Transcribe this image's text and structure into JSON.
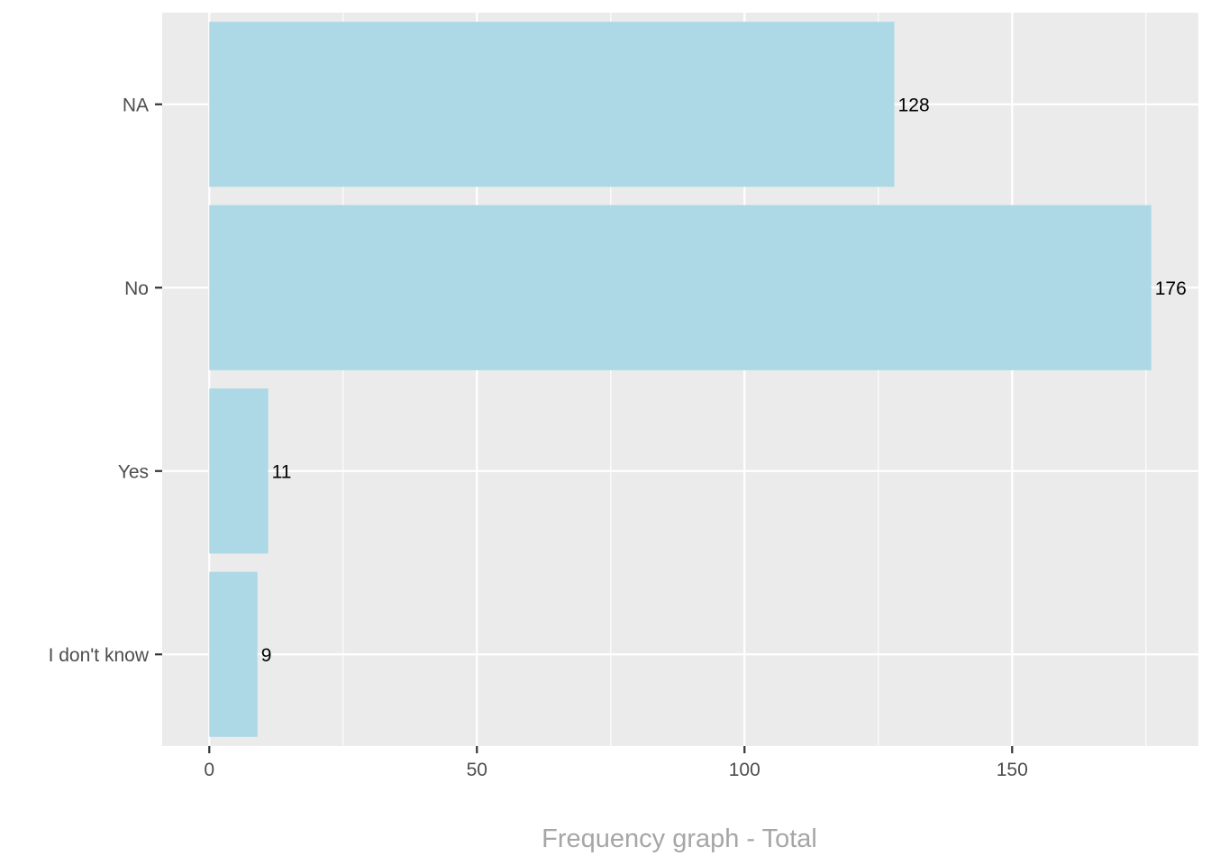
{
  "chart_data": {
    "type": "bar",
    "orientation": "horizontal",
    "categories": [
      "NA",
      "No",
      "Yes",
      "I don't know"
    ],
    "values": [
      128,
      176,
      11,
      9
    ],
    "data_labels": [
      "128",
      "176",
      "11",
      "9"
    ],
    "title": "",
    "xlabel": "Frequency graph - Total",
    "ylabel": "",
    "xlim": [
      -8.8,
      184.8
    ],
    "x_ticks": [
      0,
      50,
      100,
      150
    ],
    "x_tick_labels": [
      "0",
      "50",
      "100",
      "150"
    ],
    "grid": true,
    "legend": "none",
    "colors": {
      "bar": "#ADD8E6",
      "panel": "#EBEBEB",
      "grid": "#FFFFFF",
      "axis_title": "#A6A6A6",
      "tick_label": "#4D4D4D",
      "data_label": "#000000"
    }
  }
}
